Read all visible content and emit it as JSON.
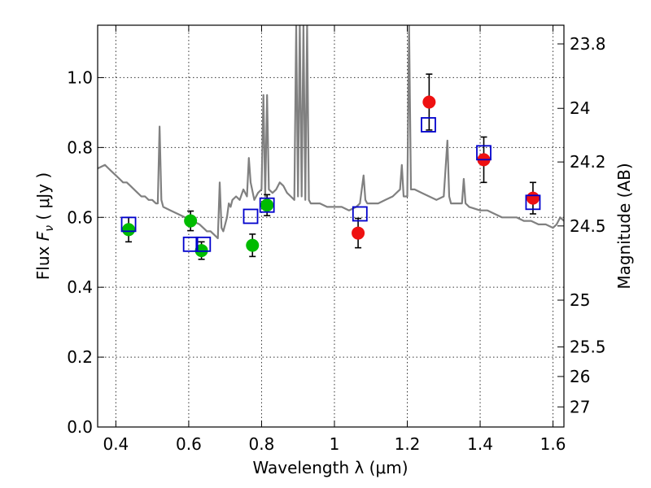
{
  "chart_data": {
    "type": "scatter",
    "title": "",
    "xlabel": "Wavelength  λ (μm)",
    "ylabel": "Flux  F_ν  ( μJy )",
    "ylabel_parts": {
      "prefix": "Flux  ",
      "var": "F",
      "sub": "ν",
      "mid": "  ( ",
      "unit": "μJy",
      "suffix": " )"
    },
    "y2label": "Magnitude (AB)",
    "xlim": [
      0.35,
      1.63
    ],
    "ylim": [
      0.0,
      1.15
    ],
    "grid": true,
    "x_ticks": [
      0.4,
      0.6,
      0.8,
      1.0,
      1.2,
      1.4,
      1.6
    ],
    "x_tick_labels": [
      "0.4",
      "0.6",
      "0.8",
      "1",
      "1.2",
      "1.4",
      "1.6"
    ],
    "y_ticks": [
      0.0,
      0.2,
      0.4,
      0.6,
      0.8,
      1.0
    ],
    "y_tick_labels": [
      "0.0",
      "0.2",
      "0.4",
      "0.6",
      "0.8",
      "1.0"
    ],
    "y2_ticks": [
      {
        "mag": 23.8,
        "label": "23.8"
      },
      {
        "mag": 24.0,
        "label": "24"
      },
      {
        "mag": 24.2,
        "label": "24.2"
      },
      {
        "mag": 24.5,
        "label": "24.5"
      },
      {
        "mag": 25.0,
        "label": "25"
      },
      {
        "mag": 25.5,
        "label": "25.5"
      },
      {
        "mag": 26.0,
        "label": "26"
      },
      {
        "mag": 27.0,
        "label": "27"
      }
    ],
    "series": [
      {
        "kind": "line",
        "color": "#808080",
        "x": [
          0.35,
          0.37,
          0.38,
          0.39,
          0.4,
          0.41,
          0.42,
          0.43,
          0.44,
          0.45,
          0.46,
          0.47,
          0.48,
          0.49,
          0.5,
          0.51,
          0.515,
          0.52,
          0.525,
          0.53,
          0.55,
          0.57,
          0.59,
          0.61,
          0.63,
          0.65,
          0.66,
          0.67,
          0.68,
          0.685,
          0.69,
          0.695,
          0.7,
          0.705,
          0.71,
          0.715,
          0.72,
          0.73,
          0.74,
          0.75,
          0.76,
          0.765,
          0.77,
          0.78,
          0.79,
          0.8,
          0.805,
          0.81,
          0.815,
          0.82,
          0.83,
          0.84,
          0.85,
          0.86,
          0.87,
          0.88,
          0.89,
          0.895,
          0.9,
          0.905,
          0.91,
          0.915,
          0.92,
          0.925,
          0.93,
          0.935,
          0.94,
          0.96,
          0.98,
          1.0,
          1.02,
          1.04,
          1.06,
          1.07,
          1.08,
          1.085,
          1.09,
          1.1,
          1.12,
          1.14,
          1.16,
          1.18,
          1.185,
          1.19,
          1.2,
          1.205,
          1.21,
          1.22,
          1.24,
          1.26,
          1.28,
          1.3,
          1.31,
          1.315,
          1.32,
          1.33,
          1.35,
          1.355,
          1.36,
          1.37,
          1.4,
          1.42,
          1.44,
          1.46,
          1.48,
          1.5,
          1.52,
          1.54,
          1.56,
          1.58,
          1.6,
          1.61,
          1.62,
          1.63
        ],
        "y": [
          0.74,
          0.75,
          0.74,
          0.73,
          0.72,
          0.71,
          0.7,
          0.7,
          0.69,
          0.68,
          0.67,
          0.66,
          0.66,
          0.65,
          0.65,
          0.64,
          0.64,
          0.86,
          0.65,
          0.63,
          0.62,
          0.61,
          0.6,
          0.59,
          0.58,
          0.56,
          0.56,
          0.55,
          0.54,
          0.7,
          0.57,
          0.56,
          0.58,
          0.6,
          0.64,
          0.63,
          0.65,
          0.66,
          0.65,
          0.68,
          0.66,
          0.77,
          0.7,
          0.65,
          0.67,
          0.68,
          0.95,
          0.66,
          0.95,
          0.68,
          0.67,
          0.68,
          0.7,
          0.69,
          0.67,
          0.66,
          0.65,
          1.15,
          0.66,
          1.15,
          0.66,
          1.15,
          0.65,
          1.15,
          0.65,
          0.64,
          0.64,
          0.64,
          0.63,
          0.63,
          0.63,
          0.62,
          0.63,
          0.64,
          0.72,
          0.65,
          0.64,
          0.64,
          0.64,
          0.65,
          0.66,
          0.68,
          0.75,
          0.66,
          0.66,
          1.15,
          0.68,
          0.68,
          0.67,
          0.66,
          0.65,
          0.66,
          0.82,
          0.66,
          0.64,
          0.64,
          0.64,
          0.71,
          0.64,
          0.63,
          0.62,
          0.62,
          0.61,
          0.6,
          0.6,
          0.6,
          0.59,
          0.59,
          0.58,
          0.58,
          0.57,
          0.58,
          0.6,
          0.59
        ]
      },
      {
        "kind": "markers",
        "marker": "circle",
        "color": "#00bb00",
        "points": [
          {
            "x": 0.435,
            "y": 0.565,
            "err": 0.035
          },
          {
            "x": 0.605,
            "y": 0.59,
            "err": 0.028
          },
          {
            "x": 0.635,
            "y": 0.505,
            "err": 0.025
          },
          {
            "x": 0.775,
            "y": 0.52,
            "err": 0.032
          },
          {
            "x": 0.815,
            "y": 0.635,
            "err": 0.03
          }
        ]
      },
      {
        "kind": "markers",
        "marker": "circle",
        "color": "#ee1111",
        "points": [
          {
            "x": 1.065,
            "y": 0.555,
            "err": 0.042
          },
          {
            "x": 1.26,
            "y": 0.93,
            "err": 0.08
          },
          {
            "x": 1.41,
            "y": 0.765,
            "err": 0.065
          },
          {
            "x": 1.545,
            "y": 0.655,
            "err": 0.045
          }
        ]
      },
      {
        "kind": "markers",
        "marker": "square-open",
        "color": "#0000cc",
        "points": [
          {
            "x": 0.435,
            "y": 0.58
          },
          {
            "x": 0.605,
            "y": 0.523
          },
          {
            "x": 0.64,
            "y": 0.523
          },
          {
            "x": 0.77,
            "y": 0.603
          },
          {
            "x": 0.815,
            "y": 0.635
          },
          {
            "x": 1.07,
            "y": 0.61
          },
          {
            "x": 1.258,
            "y": 0.865
          },
          {
            "x": 1.41,
            "y": 0.785
          },
          {
            "x": 1.545,
            "y": 0.643
          }
        ]
      }
    ]
  }
}
